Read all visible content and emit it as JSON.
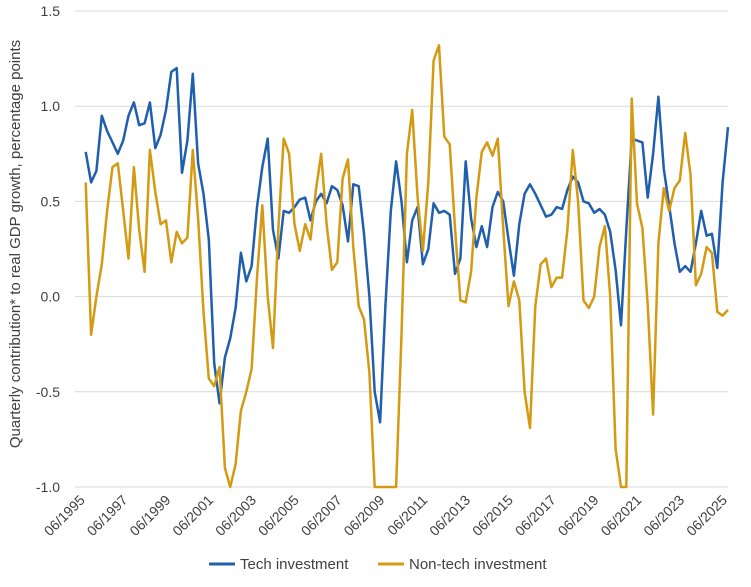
{
  "chart_data": {
    "type": "line",
    "title": "",
    "xlabel": "",
    "ylabel": "Quarterly contribution* to real GDP growth, percentage points",
    "ylim": [
      -1.0,
      1.5
    ],
    "yticks": [
      "1.5",
      "1.0",
      "0.5",
      "0.0",
      "-0.5",
      "-1.0"
    ],
    "ytick_values": [
      1.5,
      1.0,
      0.5,
      0.0,
      -0.5,
      -1.0
    ],
    "xlim": [
      1995.0,
      2025.5
    ],
    "xtick_labels": [
      "06/1995",
      "06/1997",
      "06/1999",
      "06/2001",
      "06/2003",
      "06/2005",
      "06/2007",
      "06/2009",
      "06/2011",
      "06/2013",
      "06/2015",
      "06/2017",
      "06/2019",
      "06/2021",
      "06/2023",
      "06/2025"
    ],
    "xtick_values": [
      1995.5,
      1997.5,
      1999.5,
      2001.5,
      2003.5,
      2005.5,
      2007.5,
      2009.5,
      2011.5,
      2013.5,
      2015.5,
      2017.5,
      2019.5,
      2021.5,
      2023.5,
      2025.5
    ],
    "grid": "horizontal",
    "legend": "bottom",
    "series": [
      {
        "name": "Tech investment",
        "color": "#1f5fae",
        "x": [
          1995.5,
          1995.75,
          1996.0,
          1996.25,
          1996.5,
          1996.75,
          1997.0,
          1997.25,
          1997.5,
          1997.75,
          1998.0,
          1998.25,
          1998.5,
          1998.75,
          1999.0,
          1999.25,
          1999.5,
          1999.75,
          2000.0,
          2000.25,
          2000.5,
          2000.75,
          2001.0,
          2001.25,
          2001.5,
          2001.75,
          2002.0,
          2002.25,
          2002.5,
          2002.75,
          2003.0,
          2003.25,
          2003.5,
          2003.75,
          2004.0,
          2004.25,
          2004.5,
          2004.75,
          2005.0,
          2005.25,
          2005.5,
          2005.75,
          2006.0,
          2006.25,
          2006.5,
          2006.75,
          2007.0,
          2007.25,
          2007.5,
          2007.75,
          2008.0,
          2008.25,
          2008.5,
          2008.75,
          2009.0,
          2009.25,
          2009.5,
          2009.75,
          2010.0,
          2010.25,
          2010.5,
          2010.75,
          2011.0,
          2011.25,
          2011.5,
          2011.75,
          2012.0,
          2012.25,
          2012.5,
          2012.75,
          2013.0,
          2013.25,
          2013.5,
          2013.75,
          2014.0,
          2014.25,
          2014.5,
          2014.75,
          2015.0,
          2015.25,
          2015.5,
          2015.75,
          2016.0,
          2016.25,
          2016.5,
          2016.75,
          2017.0,
          2017.25,
          2017.5,
          2017.75,
          2018.0,
          2018.25,
          2018.5,
          2018.75,
          2019.0,
          2019.25,
          2019.5,
          2019.75,
          2020.0,
          2020.25,
          2020.5,
          2020.75,
          2021.0,
          2021.25,
          2021.5,
          2021.75,
          2022.0,
          2022.25,
          2022.5,
          2022.75,
          2023.0,
          2023.25,
          2023.5,
          2023.75,
          2024.0,
          2024.25,
          2024.5,
          2024.75,
          2025.0,
          2025.25,
          2025.5
        ],
        "y": [
          0.76,
          0.6,
          0.66,
          0.95,
          0.87,
          0.81,
          0.75,
          0.82,
          0.95,
          1.02,
          0.9,
          0.91,
          1.02,
          0.78,
          0.85,
          0.98,
          1.18,
          1.2,
          0.65,
          0.82,
          1.17,
          0.7,
          0.54,
          0.3,
          -0.35,
          -0.56,
          -0.32,
          -0.22,
          -0.06,
          0.23,
          0.08,
          0.16,
          0.47,
          0.68,
          0.83,
          0.35,
          0.2,
          0.45,
          0.44,
          0.47,
          0.51,
          0.52,
          0.4,
          0.5,
          0.54,
          0.49,
          0.58,
          0.56,
          0.48,
          0.29,
          0.59,
          0.58,
          0.33,
          0.0,
          -0.5,
          -0.66,
          -0.05,
          0.45,
          0.71,
          0.5,
          0.18,
          0.4,
          0.47,
          0.17,
          0.25,
          0.49,
          0.44,
          0.45,
          0.43,
          0.12,
          0.2,
          0.71,
          0.41,
          0.26,
          0.37,
          0.26,
          0.47,
          0.55,
          0.5,
          0.3,
          0.11,
          0.38,
          0.54,
          0.59,
          0.54,
          0.48,
          0.42,
          0.43,
          0.47,
          0.46,
          0.56,
          0.63,
          0.6,
          0.5,
          0.49,
          0.44,
          0.46,
          0.43,
          0.34,
          0.14,
          -0.15,
          0.35,
          0.83,
          0.82,
          0.81,
          0.52,
          0.75,
          1.05,
          0.67,
          0.48,
          0.28,
          0.13,
          0.16,
          0.13,
          0.28,
          0.45,
          0.32,
          0.33,
          0.15,
          0.6,
          0.89
        ]
      },
      {
        "name": "Non-tech investment",
        "color": "#d49a12",
        "x": [
          1995.5,
          1995.75,
          1996.0,
          1996.25,
          1996.5,
          1996.75,
          1997.0,
          1997.25,
          1997.5,
          1997.75,
          1998.0,
          1998.25,
          1998.5,
          1998.75,
          1999.0,
          1999.25,
          1999.5,
          1999.75,
          2000.0,
          2000.25,
          2000.5,
          2000.75,
          2001.0,
          2001.25,
          2001.5,
          2001.75,
          2002.0,
          2002.25,
          2002.5,
          2002.75,
          2003.0,
          2003.25,
          2003.5,
          2003.75,
          2004.0,
          2004.25,
          2004.5,
          2004.75,
          2005.0,
          2005.25,
          2005.5,
          2005.75,
          2006.0,
          2006.25,
          2006.5,
          2006.75,
          2007.0,
          2007.25,
          2007.5,
          2007.75,
          2008.0,
          2008.25,
          2008.5,
          2008.75,
          2009.0,
          2009.25,
          2009.5,
          2009.75,
          2010.0,
          2010.25,
          2010.5,
          2010.75,
          2011.0,
          2011.25,
          2011.5,
          2011.75,
          2012.0,
          2012.25,
          2012.5,
          2012.75,
          2013.0,
          2013.25,
          2013.5,
          2013.75,
          2014.0,
          2014.25,
          2014.5,
          2014.75,
          2015.0,
          2015.25,
          2015.5,
          2015.75,
          2016.0,
          2016.25,
          2016.5,
          2016.75,
          2017.0,
          2017.25,
          2017.5,
          2017.75,
          2018.0,
          2018.25,
          2018.5,
          2018.75,
          2019.0,
          2019.25,
          2019.5,
          2019.75,
          2020.0,
          2020.25,
          2020.5,
          2020.75,
          2021.0,
          2021.25,
          2021.5,
          2021.75,
          2022.0,
          2022.25,
          2022.5,
          2022.75,
          2023.0,
          2023.25,
          2023.5,
          2023.75,
          2024.0,
          2024.25,
          2024.5,
          2024.75,
          2025.0,
          2025.25,
          2025.5
        ],
        "y": [
          0.6,
          -0.2,
          0.0,
          0.17,
          0.45,
          0.68,
          0.7,
          0.45,
          0.2,
          0.68,
          0.35,
          0.13,
          0.77,
          0.55,
          0.38,
          0.4,
          0.18,
          0.34,
          0.28,
          0.31,
          0.77,
          0.41,
          -0.08,
          -0.43,
          -0.47,
          -0.37,
          -0.9,
          -1.0,
          -0.88,
          -0.6,
          -0.5,
          -0.38,
          0.1,
          0.48,
          0.0,
          -0.27,
          0.36,
          0.83,
          0.75,
          0.38,
          0.24,
          0.38,
          0.3,
          0.56,
          0.75,
          0.38,
          0.14,
          0.18,
          0.62,
          0.72,
          0.26,
          -0.05,
          -0.12,
          -0.4,
          -1.0,
          -1.0,
          -1.0,
          -1.0,
          -1.0,
          -0.2,
          0.75,
          0.98,
          0.52,
          0.24,
          0.6,
          1.24,
          1.32,
          0.84,
          0.8,
          0.36,
          -0.02,
          -0.03,
          0.13,
          0.52,
          0.76,
          0.81,
          0.74,
          0.83,
          0.36,
          -0.05,
          0.08,
          -0.02,
          -0.5,
          -0.69,
          -0.05,
          0.17,
          0.2,
          0.05,
          0.1,
          0.1,
          0.35,
          0.77,
          0.5,
          -0.02,
          -0.06,
          0.0,
          0.26,
          0.37,
          0.0,
          -0.8,
          -1.0,
          -1.0,
          1.04,
          0.49,
          0.36,
          -0.04,
          -0.62,
          0.28,
          0.57,
          0.45,
          0.57,
          0.61,
          0.86,
          0.64,
          0.06,
          0.12,
          0.26,
          0.23,
          -0.08,
          -0.1,
          -0.07
        ]
      }
    ]
  }
}
